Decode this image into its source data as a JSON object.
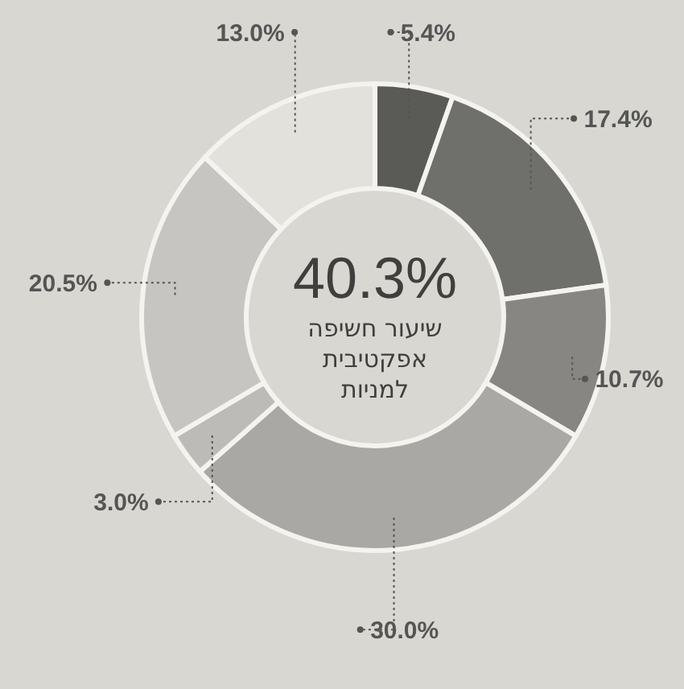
{
  "chart_data": {
    "type": "donut",
    "categories": [
      null,
      null,
      null,
      null,
      null,
      null,
      null
    ],
    "values": [
      5.4,
      17.4,
      10.7,
      30.0,
      3.0,
      20.5,
      13.0
    ],
    "colors": [
      "#5a5a57",
      "#6f6f6b",
      "#878683",
      "#a9a8a4",
      "#bcbbb7",
      "#c6c5c1",
      "#e2e1dc"
    ],
    "value_labels": [
      "5.4%",
      "17.4%",
      "10.7%",
      "30.0%",
      "3.0%",
      "20.5%",
      "13.0%"
    ],
    "annotations": [
      "40.3%",
      "שיעור חשיפה אפקטיבית למניות"
    ]
  }
}
